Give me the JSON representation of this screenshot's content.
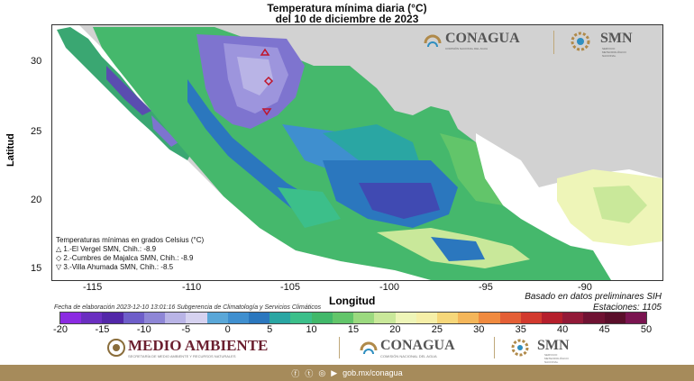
{
  "title": {
    "line1": "Temperatura mínima diaria (°C)",
    "line2": "del 10 de diciembre de 2023"
  },
  "axes": {
    "xlabel": "Longitud",
    "ylabel": "Latitud",
    "xticks": [
      "-115",
      "-110",
      "-105",
      "-100",
      "-95",
      "-90"
    ],
    "yticks": [
      "30",
      "25",
      "20",
      "15"
    ]
  },
  "info": {
    "basado": "Basado en datos preliminares SIH",
    "estaciones": "Estaciones:  1105",
    "elaboracion": "Fecha de elaboración 2023-12-10 13:01:16 Subgerencia de Climatología y Servicios Climáticos"
  },
  "legend": {
    "heading": "Temperaturas mínimas en grados Celsius (°C)",
    "items": [
      {
        "symbol": "△",
        "text": "1.-El Vergel SMN, Chih.: -8.9"
      },
      {
        "symbol": "◇",
        "text": "2.-Cumbres de Majalca SMN, Chih.: -8.9"
      },
      {
        "symbol": "▽",
        "text": "3.-Villa Ahumada SMN, Chih.: -8.5"
      }
    ]
  },
  "colorbar": {
    "labels": [
      "-20",
      "-15",
      "-10",
      "-5",
      "0",
      "5",
      "10",
      "15",
      "20",
      "25",
      "30",
      "35",
      "40",
      "45",
      "50"
    ],
    "colors": [
      "#8b2be2",
      "#6a2fc0",
      "#5227a8",
      "#6e5ec9",
      "#8e86d6",
      "#b9b4e6",
      "#d6d2f0",
      "#5aa7d8",
      "#3f8fcf",
      "#2b77be",
      "#2aa6a3",
      "#3cbf8a",
      "#41b86a",
      "#62c56a",
      "#9bd97f",
      "#c9e89a",
      "#eef5b8",
      "#f6efa8",
      "#f6d77a",
      "#f4b65a",
      "#f08a3f",
      "#e45f36",
      "#d23a2e",
      "#b51f2c",
      "#921a38",
      "#6f1232",
      "#5a0e2a",
      "#7a1450"
    ]
  },
  "logos": {
    "conagua": "CONAGUA",
    "conagua_sub": "COMISIÓN NACIONAL DEL AGUA",
    "smn": "SMN",
    "smn_sub": "SERVICIO METEOROLÓGICO NACIONAL",
    "medio_ambiente": "MEDIO AMBIENTE",
    "medio_ambiente_sub": "SECRETARÍA DE MEDIO AMBIENTE Y RECURSOS NATURALES"
  },
  "footer": {
    "url": "gob.mx/conagua"
  }
}
